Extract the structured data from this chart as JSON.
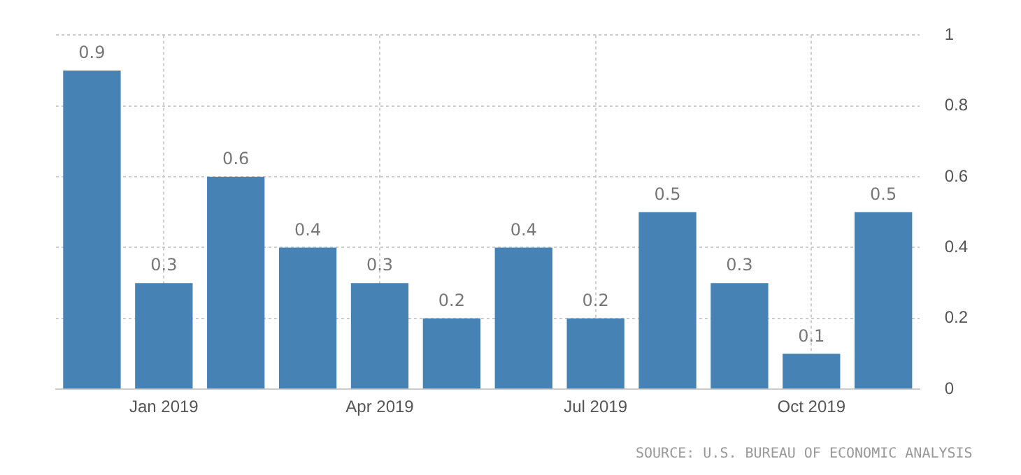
{
  "chart_data": {
    "type": "bar",
    "categories": [
      null,
      "Jan 2019",
      null,
      null,
      "Apr 2019",
      null,
      null,
      "Jul 2019",
      null,
      null,
      "Oct 2019",
      null
    ],
    "values": [
      0.9,
      0.3,
      0.6,
      0.4,
      0.3,
      0.2,
      0.4,
      0.2,
      0.5,
      0.3,
      0.1,
      0.5
    ],
    "color": "#4682b4",
    "ylim": [
      0,
      1
    ],
    "yticks": [
      0,
      0.2,
      0.4,
      0.6,
      0.8,
      1
    ],
    "grid": true,
    "data_labels": true,
    "legend": false,
    "annotations": [
      "SOURCE: U.S. BUREAU OF ECONOMIC ANALYSIS"
    ]
  }
}
